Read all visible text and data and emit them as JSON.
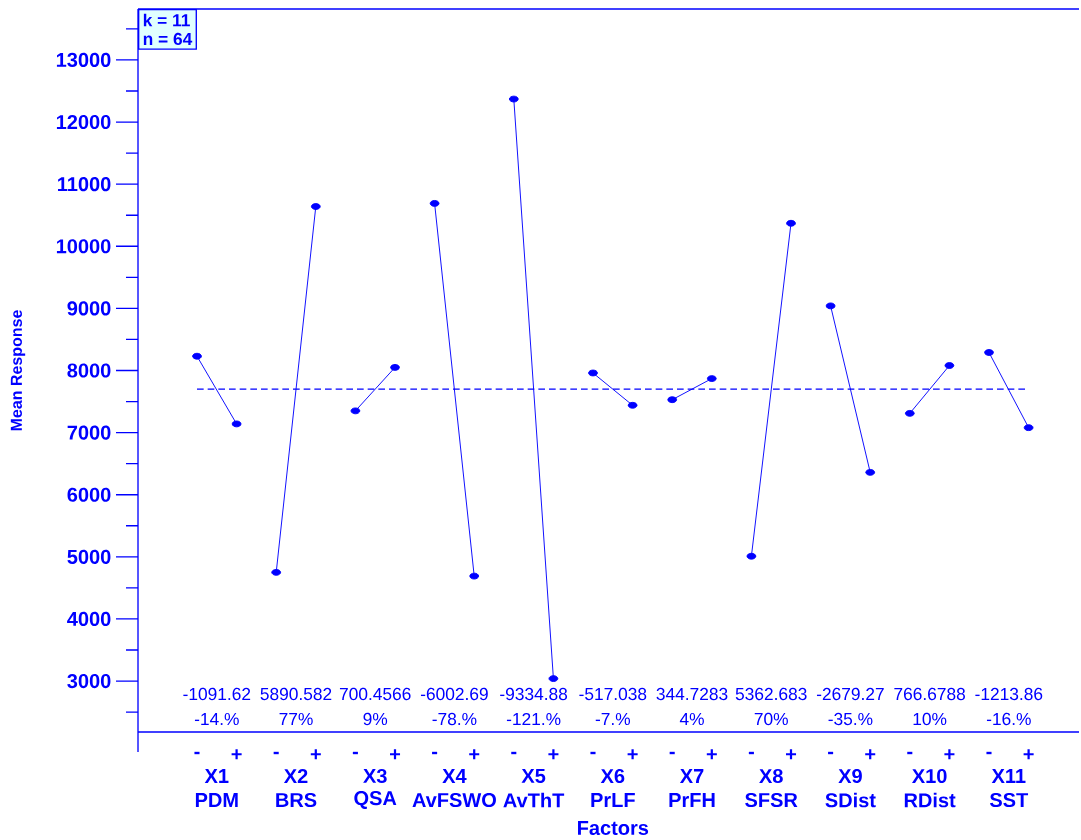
{
  "chart_data": {
    "type": "line",
    "xlabel": "Factors",
    "ylabel": "Mean Response",
    "categories": [
      "-",
      "+",
      "-",
      "+",
      "-",
      "+",
      "-",
      "+",
      "-",
      "+",
      "-",
      "+",
      "-",
      "+",
      "-",
      "+",
      "-",
      "+",
      "-",
      "+",
      "-",
      "+"
    ],
    "series": [
      {
        "color": "#0000ff",
        "values": [
          8230,
          7140,
          null,
          null,
          null,
          null,
          null,
          null,
          null,
          null,
          null,
          null,
          null,
          null,
          null,
          null,
          null,
          null,
          null,
          null,
          null,
          null
        ]
      },
      {
        "color": "#0000ff",
        "values": [
          null,
          null,
          4750,
          10640,
          null,
          null,
          null,
          null,
          null,
          null,
          null,
          null,
          null,
          null,
          null,
          null,
          null,
          null,
          null,
          null,
          null,
          null
        ]
      },
      {
        "color": "#0000ff",
        "values": [
          null,
          null,
          null,
          null,
          7350,
          8050,
          null,
          null,
          null,
          null,
          null,
          null,
          null,
          null,
          null,
          null,
          null,
          null,
          null,
          null,
          null,
          null
        ]
      },
      {
        "color": "#0000ff",
        "values": [
          null,
          null,
          null,
          null,
          null,
          null,
          10690,
          4690,
          null,
          null,
          null,
          null,
          null,
          null,
          null,
          null,
          null,
          null,
          null,
          null,
          null,
          null
        ]
      },
      {
        "color": "#0000ff",
        "values": [
          null,
          null,
          null,
          null,
          null,
          null,
          null,
          null,
          12370,
          3040,
          null,
          null,
          null,
          null,
          null,
          null,
          null,
          null,
          null,
          null,
          null,
          null
        ]
      },
      {
        "color": "#0000ff",
        "values": [
          null,
          null,
          null,
          null,
          null,
          null,
          null,
          null,
          null,
          null,
          7960,
          7440,
          null,
          null,
          null,
          null,
          null,
          null,
          null,
          null,
          null,
          null
        ]
      },
      {
        "color": "#0000ff",
        "values": [
          null,
          null,
          null,
          null,
          null,
          null,
          null,
          null,
          null,
          null,
          null,
          null,
          7530,
          7870,
          null,
          null,
          null,
          null,
          null,
          null,
          null,
          null
        ]
      },
      {
        "color": "#0000ff",
        "values": [
          null,
          null,
          null,
          null,
          null,
          null,
          null,
          null,
          null,
          null,
          null,
          null,
          null,
          null,
          5010,
          10370,
          null,
          null,
          null,
          null,
          null,
          null
        ]
      },
      {
        "color": "#0000ff",
        "values": [
          null,
          null,
          null,
          null,
          null,
          null,
          null,
          null,
          null,
          null,
          null,
          null,
          null,
          null,
          null,
          null,
          9040,
          6360,
          null,
          null,
          null,
          null
        ]
      },
      {
        "color": "#0000ff",
        "values": [
          null,
          null,
          null,
          null,
          null,
          null,
          null,
          null,
          null,
          null,
          null,
          null,
          null,
          null,
          null,
          null,
          null,
          null,
          7310,
          8080,
          null,
          null
        ]
      },
      {
        "color": "#0000ff",
        "values": [
          null,
          null,
          null,
          null,
          null,
          null,
          null,
          null,
          null,
          null,
          null,
          null,
          null,
          null,
          null,
          null,
          null,
          null,
          null,
          null,
          8290,
          7080
        ]
      }
    ],
    "marker": "circle",
    "ylim": [
      2180,
      13820
    ],
    "yticks": [
      {
        "value": 2500,
        "label": null
      },
      3000,
      {
        "value": 3500,
        "label": null
      },
      4000,
      {
        "value": 4500,
        "label": null
      },
      5000,
      {
        "value": 5500,
        "label": null
      },
      6000,
      {
        "value": 6500,
        "label": null
      },
      7000,
      {
        "value": 7500,
        "label": null
      },
      8000,
      {
        "value": 8500,
        "label": null
      },
      9000,
      {
        "value": 9500,
        "label": null
      },
      10000,
      {
        "value": 10500,
        "label": null
      },
      11000,
      {
        "value": 11500,
        "label": null
      },
      12000,
      {
        "value": 12500,
        "label": null
      },
      13000,
      {
        "value": 13500,
        "label": null
      }
    ],
    "ref_lines": [
      {
        "axis": "y",
        "value": 7700,
        "color": "#0000ff",
        "line_style": "dashed"
      }
    ],
    "annotations": [
      "k = 11",
      "n = 64",
      "-1091.62",
      "-14.%",
      "X1",
      "PDM",
      "5890.582",
      "77%",
      "X2",
      "BRS",
      "700.4566",
      "9%",
      "X3",
      "QSA",
      "-6002.69",
      "-78.%",
      "X4",
      "AvFSWO",
      "-9334.88",
      "-121.%",
      "X5",
      "AvThT",
      "-517.038",
      "-7.%",
      "X6",
      "PrLF",
      "344.7283",
      "4%",
      "X7",
      "PrFH",
      "5362.683",
      "70%",
      "X8",
      "SFSR",
      "-2679.27",
      "-35.%",
      "X9",
      "SDist",
      "766.6788",
      "10%",
      "X10",
      "RDist",
      "-1213.86",
      "-16.%",
      "X11",
      "SST"
    ]
  }
}
